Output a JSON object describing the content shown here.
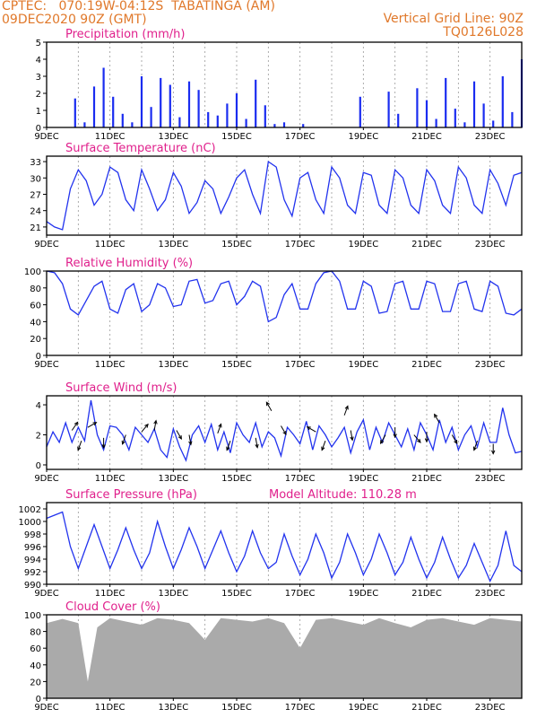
{
  "header": {
    "line1": "CPTEC:   070:19W-04:12S  TABATINGA (AM)",
    "line2": "09DEC2020 90Z (GMT)",
    "right_line1": "Vertical Grid Line: 90Z",
    "right_line2": "TQ0126L028"
  },
  "colors": {
    "header": "#e0782a",
    "title": "#e0208c",
    "line": "#2233ee",
    "bars": "#1a2cf0",
    "cloud": "#aaaaaa"
  },
  "x_tick_labels": [
    "9DEC",
    "11DEC",
    "13DEC",
    "15DEC",
    "17DEC",
    "19DEC",
    "21DEC",
    "23DEC"
  ],
  "chart_data": [
    {
      "type": "bar",
      "title": "Precipitation  (mm/h)",
      "ylim": [
        0,
        5
      ],
      "yticks": [
        "0",
        "1",
        "2",
        "3",
        "4",
        "5"
      ],
      "day_offset": [
        0.3,
        0.6,
        0.9,
        1.2,
        1.5,
        1.8,
        2.1,
        2.4,
        2.7,
        3.0,
        3.3,
        3.6,
        3.9,
        4.2,
        4.5,
        4.8,
        5.1,
        5.4,
        5.7,
        6.0,
        6.3,
        6.6,
        6.9,
        7.2,
        7.5,
        7.8,
        8.1,
        8.4,
        8.7,
        9.0,
        9.3,
        9.6,
        9.9,
        10.2,
        10.5,
        10.8,
        11.1,
        11.4,
        11.7,
        12.0,
        12.3,
        12.6,
        12.9,
        13.2,
        13.5,
        13.8,
        14.1,
        14.4,
        14.7,
        15.0
      ],
      "values": [
        0,
        0,
        1.7,
        0.3,
        2.4,
        3.5,
        1.8,
        0.8,
        0.3,
        3.0,
        1.2,
        2.9,
        2.5,
        0.6,
        2.7,
        2.2,
        0.9,
        0.7,
        1.4,
        2.0,
        0.5,
        2.8,
        1.3,
        0.2,
        0.3,
        0,
        0.2,
        0,
        0,
        0,
        0,
        0,
        1.8,
        0,
        0,
        2.1,
        0.8,
        0,
        2.3,
        1.6,
        0.5,
        2.9,
        1.1,
        0.3,
        2.7,
        1.4,
        0.4,
        3.0,
        0.9,
        4.0
      ]
    },
    {
      "type": "line",
      "title": "Surface Temperature (nC)",
      "ylim": [
        19.5,
        34.0
      ],
      "yticks": [
        "21",
        "24",
        "27",
        "30",
        "33"
      ],
      "day_offset": [
        0,
        0.25,
        0.5,
        0.75,
        1.0,
        1.25,
        1.5,
        1.75,
        2.0,
        2.25,
        2.5,
        2.75,
        3.0,
        3.25,
        3.5,
        3.75,
        4.0,
        4.25,
        4.5,
        4.75,
        5.0,
        5.25,
        5.5,
        5.75,
        6.0,
        6.25,
        6.5,
        6.75,
        7.0,
        7.25,
        7.5,
        7.75,
        8.0,
        8.25,
        8.5,
        8.75,
        9.0,
        9.25,
        9.5,
        9.75,
        10.0,
        10.25,
        10.5,
        10.75,
        11.0,
        11.25,
        11.5,
        11.75,
        12.0,
        12.25,
        12.5,
        12.75,
        13.0,
        13.25,
        13.5,
        13.75,
        14.0,
        14.25,
        14.5,
        14.75,
        15.0
      ],
      "values": [
        22.0,
        21.0,
        20.5,
        28.0,
        31.5,
        29.5,
        25.0,
        27.0,
        32.0,
        31.0,
        26.0,
        24.0,
        31.5,
        28.0,
        24.0,
        26.0,
        31.0,
        28.5,
        23.5,
        25.5,
        29.5,
        28.0,
        23.5,
        26.5,
        30.0,
        31.5,
        27.0,
        23.5,
        33.0,
        32.0,
        26.0,
        23.0,
        30.0,
        31.0,
        26.0,
        23.5,
        32.0,
        30.0,
        25.0,
        23.5,
        31.0,
        30.5,
        25.0,
        23.5,
        31.5,
        30.0,
        25.0,
        23.5,
        31.5,
        29.5,
        25.0,
        23.5,
        32.0,
        30.0,
        25.0,
        23.5,
        31.5,
        29.0,
        25.0,
        30.5,
        31.0
      ]
    },
    {
      "type": "line",
      "title": "Relative Humidity  (%)",
      "ylim": [
        0,
        100
      ],
      "yticks": [
        "0",
        "20",
        "40",
        "60",
        "80",
        "100"
      ],
      "day_offset": [
        0,
        0.25,
        0.5,
        0.75,
        1.0,
        1.25,
        1.5,
        1.75,
        2.0,
        2.25,
        2.5,
        2.75,
        3.0,
        3.25,
        3.5,
        3.75,
        4.0,
        4.25,
        4.5,
        4.75,
        5.0,
        5.25,
        5.5,
        5.75,
        6.0,
        6.25,
        6.5,
        6.75,
        7.0,
        7.25,
        7.5,
        7.75,
        8.0,
        8.25,
        8.5,
        8.75,
        9.0,
        9.25,
        9.5,
        9.75,
        10.0,
        10.25,
        10.5,
        10.75,
        11.0,
        11.25,
        11.5,
        11.75,
        12.0,
        12.25,
        12.5,
        12.75,
        13.0,
        13.25,
        13.5,
        13.75,
        14.0,
        14.25,
        14.5,
        14.75,
        15.0
      ],
      "values": [
        100,
        98,
        85,
        55,
        48,
        65,
        82,
        88,
        55,
        50,
        78,
        85,
        52,
        60,
        85,
        80,
        58,
        60,
        88,
        90,
        62,
        65,
        85,
        88,
        60,
        70,
        88,
        82,
        40,
        45,
        72,
        85,
        55,
        55,
        85,
        98,
        100,
        88,
        55,
        55,
        88,
        82,
        50,
        52,
        85,
        88,
        55,
        55,
        88,
        85,
        52,
        52,
        85,
        88,
        55,
        52,
        88,
        82,
        50,
        48,
        55
      ]
    },
    {
      "type": "line",
      "title": "Surface Wind  (m/s)",
      "ylim": [
        -0.3,
        4.6
      ],
      "yticks": [
        "0",
        "2",
        "4"
      ],
      "day_offset": [
        0,
        0.2,
        0.4,
        0.6,
        0.8,
        1.0,
        1.2,
        1.4,
        1.6,
        1.8,
        2.0,
        2.2,
        2.4,
        2.6,
        2.8,
        3.0,
        3.2,
        3.4,
        3.6,
        3.8,
        4.0,
        4.2,
        4.4,
        4.6,
        4.8,
        5.0,
        5.2,
        5.4,
        5.6,
        5.8,
        6.0,
        6.2,
        6.4,
        6.6,
        6.8,
        7.0,
        7.2,
        7.4,
        7.6,
        7.8,
        8.0,
        8.2,
        8.4,
        8.6,
        8.8,
        9.0,
        9.2,
        9.4,
        9.6,
        9.8,
        10.0,
        10.2,
        10.4,
        10.6,
        10.8,
        11.0,
        11.2,
        11.4,
        11.6,
        11.8,
        12.0,
        12.2,
        12.4,
        12.6,
        12.8,
        13.0,
        13.2,
        13.4,
        13.6,
        13.8,
        14.0,
        14.2,
        14.4,
        14.6,
        14.8,
        15.0
      ],
      "values": [
        1.2,
        2.2,
        1.5,
        2.8,
        1.5,
        2.5,
        1.6,
        4.3,
        2.0,
        1.0,
        2.6,
        2.5,
        2.0,
        1.0,
        2.5,
        2.0,
        1.5,
        2.4,
        1.0,
        0.5,
        2.4,
        1.2,
        0.3,
        2.0,
        2.6,
        1.5,
        2.7,
        1.0,
        2.2,
        0.8,
        2.8,
        2.0,
        1.5,
        2.8,
        1.2,
        2.2,
        1.8,
        0.6,
        2.5,
        2.0,
        1.4,
        2.9,
        1.0,
        2.6,
        2.0,
        1.2,
        1.8,
        2.5,
        0.8,
        2.2,
        3.0,
        1.0,
        2.5,
        1.5,
        2.8,
        2.0,
        1.2,
        2.4,
        1.0,
        2.8,
        2.0,
        1.0,
        3.0,
        1.5,
        2.5,
        1.0,
        2.0,
        2.6,
        1.2,
        2.8,
        1.5,
        1.5,
        3.8,
        2.0,
        0.8,
        0.9
      ]
    },
    {
      "type": "line",
      "title": "Surface Pressure (hPa)",
      "annotation": "Model Altitude: 110.28  m",
      "ylim": [
        990,
        1003
      ],
      "yticks": [
        "990",
        "992",
        "994",
        "996",
        "998",
        "1000",
        "1002"
      ],
      "day_offset": [
        0,
        0.25,
        0.5,
        0.75,
        1.0,
        1.25,
        1.5,
        1.75,
        2.0,
        2.25,
        2.5,
        2.75,
        3.0,
        3.25,
        3.5,
        3.75,
        4.0,
        4.25,
        4.5,
        4.75,
        5.0,
        5.25,
        5.5,
        5.75,
        6.0,
        6.25,
        6.5,
        6.75,
        7.0,
        7.25,
        7.5,
        7.75,
        8.0,
        8.25,
        8.5,
        8.75,
        9.0,
        9.25,
        9.5,
        9.75,
        10.0,
        10.25,
        10.5,
        10.75,
        11.0,
        11.25,
        11.5,
        11.75,
        12.0,
        12.25,
        12.5,
        12.75,
        13.0,
        13.25,
        13.5,
        13.75,
        14.0,
        14.25,
        14.5,
        14.75,
        15.0
      ],
      "values": [
        1000.5,
        1001.0,
        1001.5,
        996.0,
        992.5,
        996.0,
        999.5,
        996.0,
        992.5,
        995.5,
        999.0,
        995.5,
        992.5,
        995.0,
        1000.0,
        996.0,
        992.5,
        995.5,
        999.0,
        996.0,
        992.5,
        995.5,
        998.5,
        995.0,
        992.0,
        994.5,
        998.5,
        995.0,
        992.5,
        993.5,
        998.0,
        994.5,
        991.5,
        994.0,
        998.0,
        995.0,
        991.0,
        993.5,
        998.0,
        995.0,
        991.5,
        994.0,
        998.0,
        995.0,
        991.5,
        993.5,
        997.5,
        994.0,
        991.0,
        993.5,
        997.5,
        994.0,
        991.0,
        993.0,
        996.5,
        993.5,
        990.5,
        993.0,
        998.5,
        993.0,
        992.0
      ]
    },
    {
      "type": "area",
      "title": "Cloud Cover  (%)",
      "ylim": [
        0,
        100
      ],
      "yticks": [
        "0",
        "20",
        "40",
        "60",
        "80",
        "100"
      ],
      "day_offset": [
        0,
        0.5,
        1.0,
        1.3,
        1.6,
        2.0,
        2.5,
        3.0,
        3.5,
        4.0,
        4.5,
        5.0,
        5.5,
        6.0,
        6.5,
        7.0,
        7.5,
        8.0,
        8.5,
        9.0,
        9.5,
        10.0,
        10.5,
        11.0,
        11.5,
        12.0,
        12.5,
        13.0,
        13.5,
        14.0,
        14.5,
        15.0
      ],
      "values": [
        90,
        95,
        90,
        20,
        85,
        96,
        92,
        88,
        96,
        94,
        90,
        70,
        96,
        94,
        92,
        96,
        90,
        60,
        94,
        96,
        92,
        88,
        96,
        90,
        85,
        94,
        96,
        92,
        88,
        96,
        94,
        92
      ]
    }
  ]
}
